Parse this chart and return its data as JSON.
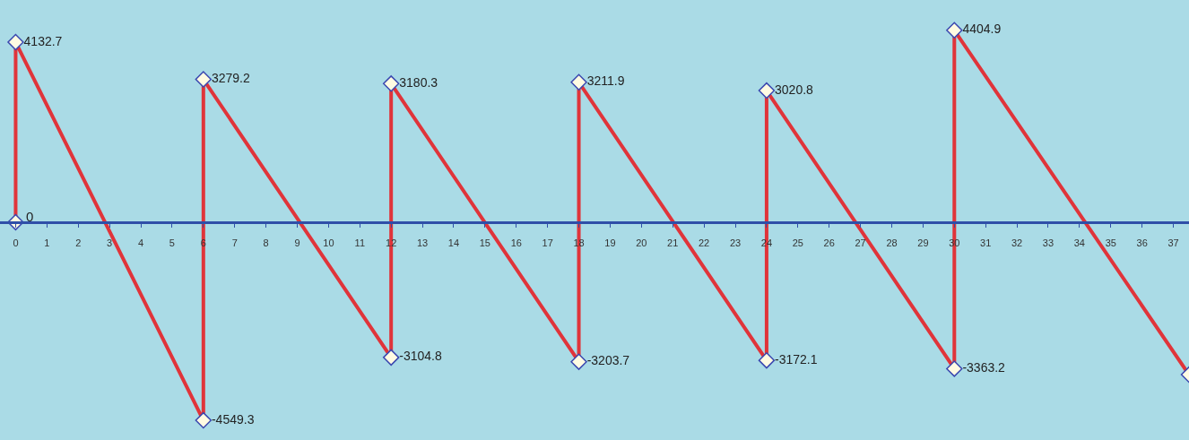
{
  "chart_data": {
    "type": "line",
    "x": [
      0,
      0,
      6,
      6,
      12,
      12,
      18,
      18,
      24,
      24,
      30,
      30,
      37.5
    ],
    "series": [
      {
        "color": "#e0343a",
        "values": [
          0,
          4132.7,
          -4549.3,
          3279.2,
          -3104.8,
          3180.3,
          -3203.7,
          3211.9,
          -3172.1,
          3020.8,
          -3363.2,
          4404.9,
          -3500
        ],
        "value_labels": [
          null,
          "4132.7",
          "-4549.3",
          "3279.2",
          "-3104.8",
          "3180.3",
          "-3203.7",
          "3211.9",
          "-3172.1",
          "3020.8",
          "-3363.2",
          "4404.9",
          null
        ]
      }
    ],
    "xlim": [
      -0.5,
      37.5
    ],
    "xticks": [
      0,
      1,
      2,
      3,
      4,
      5,
      6,
      7,
      8,
      9,
      10,
      11,
      12,
      13,
      14,
      15,
      16,
      17,
      18,
      19,
      20,
      21,
      22,
      23,
      24,
      25,
      26,
      27,
      28,
      29,
      30,
      31,
      32,
      33,
      34,
      35,
      36,
      37
    ],
    "ylim": [
      -5000,
      5100
    ],
    "annotations": [
      {
        "text": "0",
        "x": 0,
        "y": 0
      }
    ],
    "grid": false,
    "marker": "diamond",
    "line_style": "solid"
  }
}
